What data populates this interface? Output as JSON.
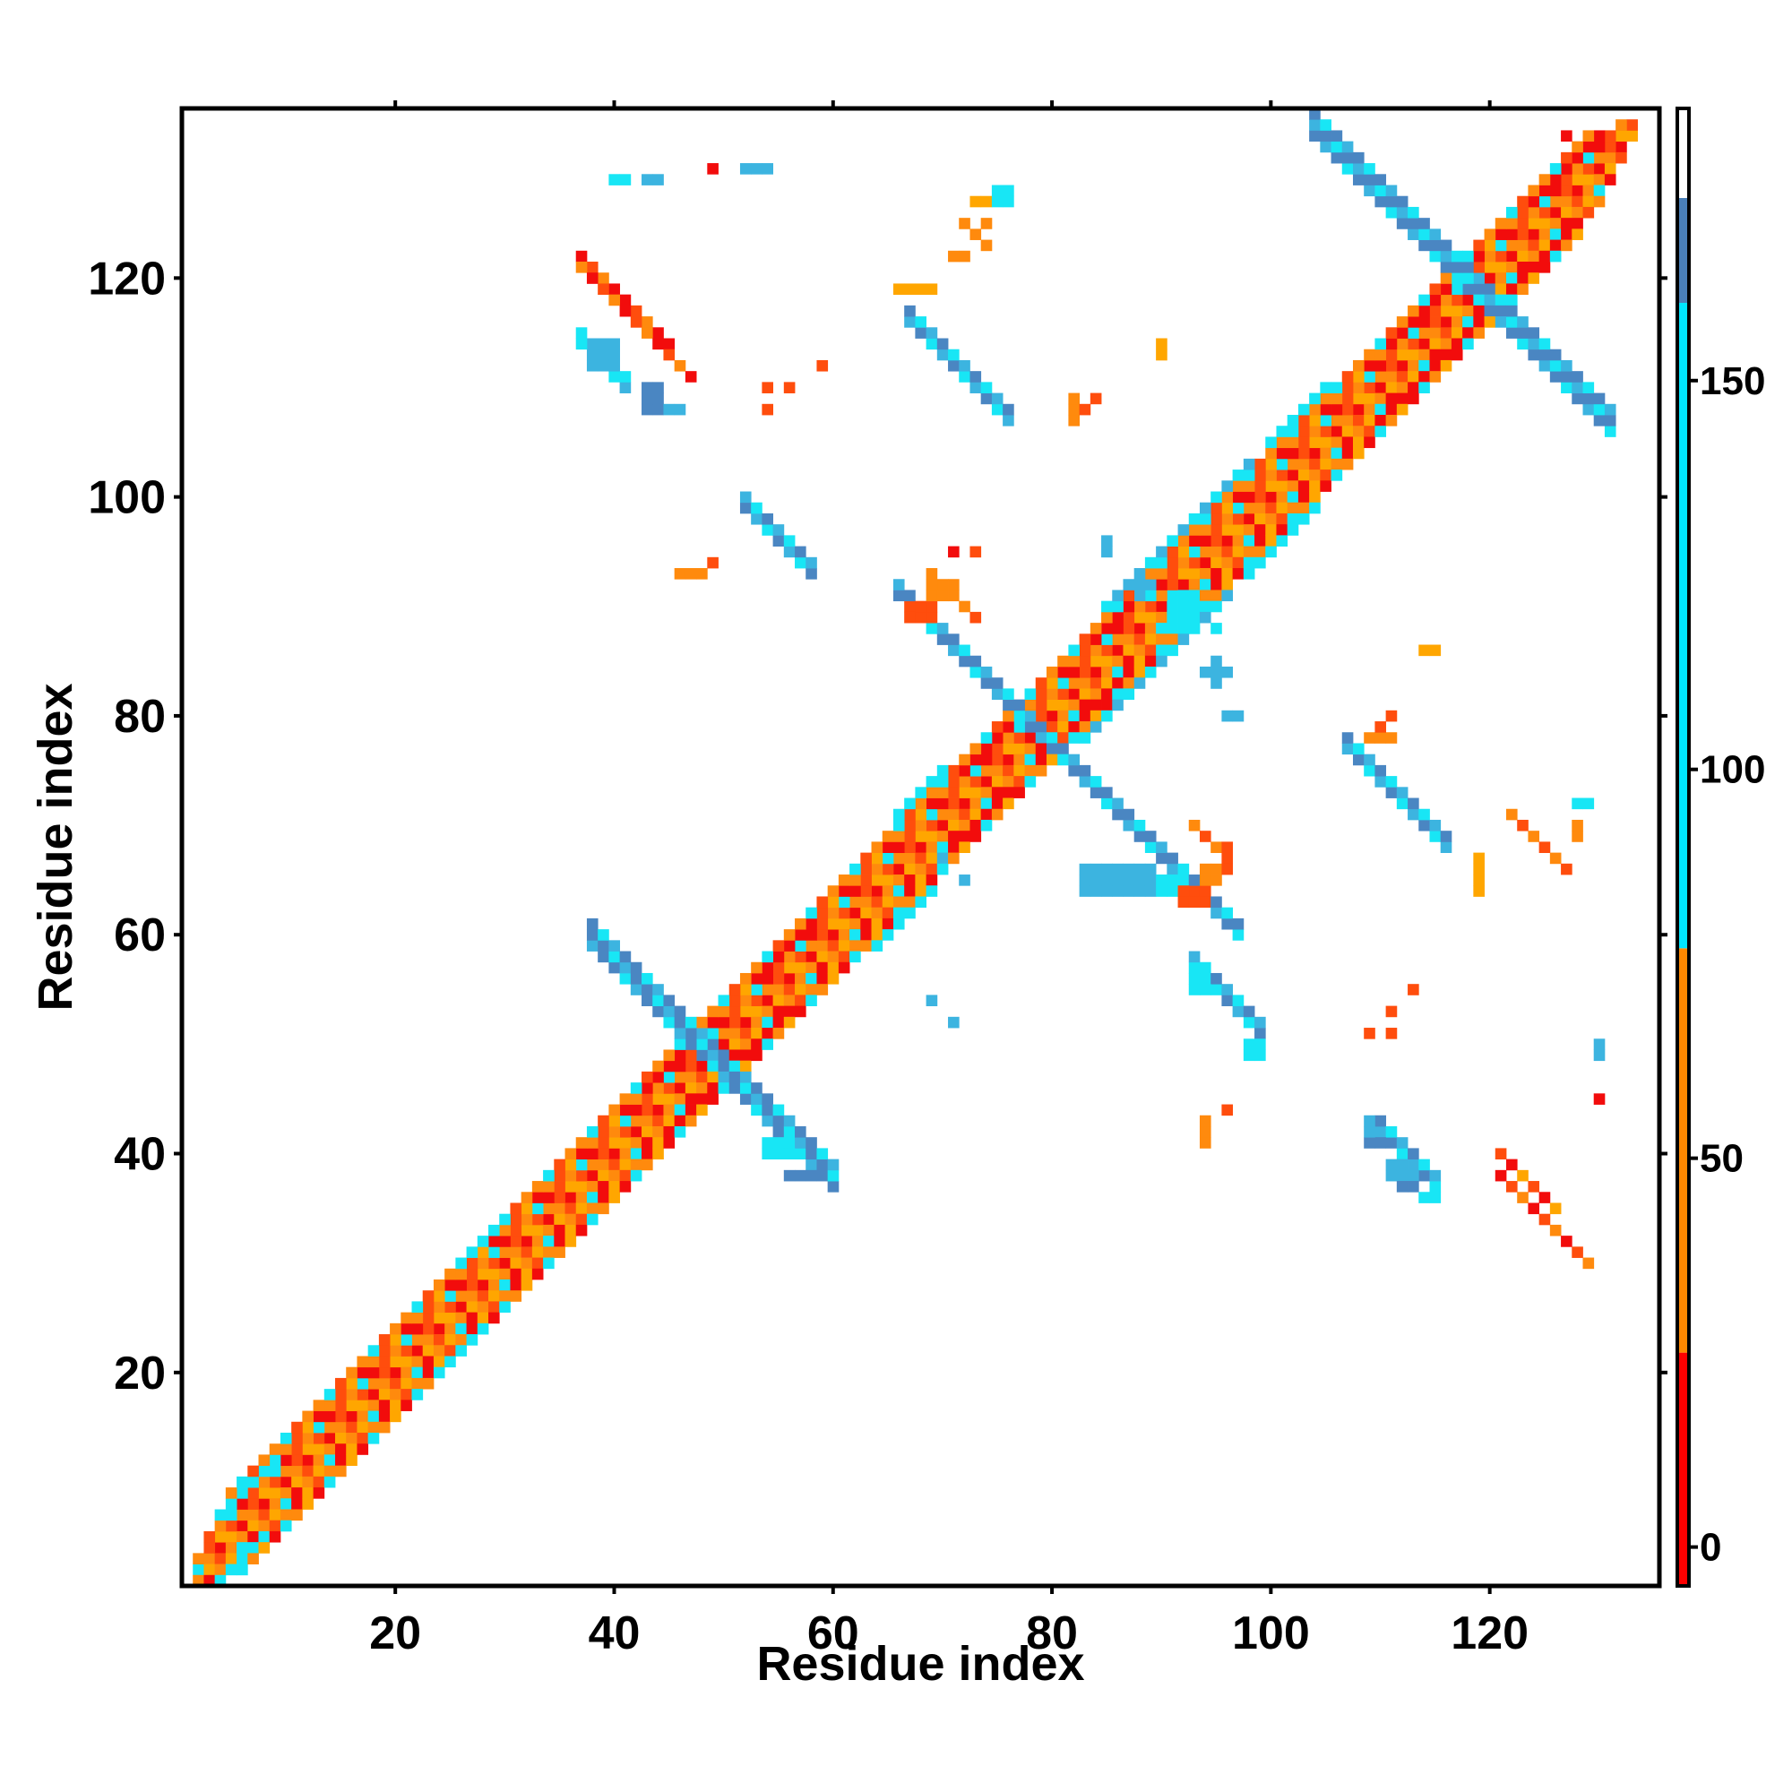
{
  "chart_data": {
    "type": "heatmap",
    "title": "",
    "xlabel": "Residue index",
    "ylabel": "Residue index",
    "xlim": [
      1,
      135
    ],
    "ylim": [
      1,
      135
    ],
    "xticks": [
      20,
      40,
      60,
      80,
      100,
      120
    ],
    "yticks": [
      20,
      40,
      60,
      80,
      100,
      120
    ],
    "colorbar": {
      "ticks": [
        0,
        50,
        100,
        150
      ],
      "range": [
        -5,
        185
      ],
      "segments": [
        {
          "from": -5,
          "to": 25,
          "color": "#ff0000"
        },
        {
          "from": 25,
          "to": 77,
          "color": "#ff8800"
        },
        {
          "from": 77,
          "to": 160,
          "color": "#00e5ff"
        },
        {
          "from": 160,
          "to": 185,
          "color": "#4a7fb8"
        }
      ]
    },
    "colors": {
      "red": "#f20c0c",
      "redorange": "#ff4d0d",
      "orange": "#ff8a0d",
      "amber": "#ffa600",
      "cyan": "#18e6f5",
      "lightblue": "#3cb4e0",
      "steelblue": "#4a86c2"
    },
    "cells": [
      {
        "x": 2,
        "y": 2,
        "c": "cyan"
      },
      {
        "x": 3,
        "y": 3,
        "c": "orange"
      },
      {
        "x": 127,
        "y": 133,
        "c": "red"
      },
      {
        "x": 117,
        "y": 120,
        "c": "cyan"
      }
    ],
    "strips": [
      {
        "x0": 2,
        "x1": 133,
        "dy": 0,
        "c": [
          "red",
          "orange",
          "red",
          "amber"
        ]
      },
      {
        "x0": 2,
        "x1": 133,
        "dy": 1,
        "c": [
          "orange",
          "redorange",
          "amber",
          "redorange"
        ]
      },
      {
        "x0": 2,
        "x1": 132,
        "dy": -1,
        "c": [
          "orange",
          "amber",
          "redorange",
          "orange"
        ]
      },
      {
        "x0": 3,
        "x1": 132,
        "dy": 2,
        "c": [
          "redorange",
          "orange",
          "cyan",
          "red"
        ]
      },
      {
        "x0": 3,
        "x1": 131,
        "dy": -2,
        "c": [
          "red",
          "orange",
          "amber",
          "cyan"
        ]
      },
      {
        "x0": 4,
        "x1": 130,
        "dy": 3,
        "c": [
          "amber",
          "red",
          "orange",
          "redorange"
        ]
      },
      {
        "x0": 5,
        "x1": 130,
        "dy": -3,
        "c": [
          "redorange",
          "orange",
          "red",
          "amber"
        ]
      },
      {
        "x0": 5,
        "x1": 129,
        "dy": 4,
        "c": [
          "orange",
          "cyan",
          "redorange",
          "orange"
        ]
      },
      {
        "x0": 6,
        "x1": 128,
        "dy": -4,
        "c": [
          "cyan",
          "orange",
          "amber",
          "red"
        ]
      },
      {
        "x0": 2,
        "x1": 8,
        "dy": -3,
        "c": [
          "cyan"
        ]
      },
      {
        "x0": 4,
        "x1": 9,
        "dy": 3,
        "c": [
          "cyan"
        ]
      },
      {
        "x0": 24,
        "x1": 28,
        "dy": -4,
        "c": [
          "cyan"
        ]
      },
      {
        "x0": 26,
        "x1": 29,
        "dy": 4,
        "c": [
          "cyan"
        ]
      },
      {
        "x0": 64,
        "x1": 69,
        "dy": -5,
        "c": [
          "cyan"
        ]
      },
      {
        "x0": 66,
        "x1": 70,
        "dy": 5,
        "c": [
          "cyan"
        ]
      },
      {
        "x0": 83,
        "x1": 96,
        "dy": -5,
        "c": [
          "cyan",
          "lightblue"
        ]
      },
      {
        "x0": 85,
        "x1": 98,
        "dy": 5,
        "c": [
          "cyan",
          "lightblue"
        ]
      },
      {
        "x0": 98,
        "x1": 104,
        "dy": -5,
        "c": [
          "cyan"
        ]
      },
      {
        "x0": 100,
        "x1": 105,
        "dy": 5,
        "c": [
          "cyan"
        ]
      },
      {
        "x0": 43,
        "x1": 47,
        "dy": 3,
        "c": [
          "red"
        ]
      },
      {
        "x0": 45,
        "x1": 49,
        "dy": -3,
        "c": [
          "red"
        ]
      },
      {
        "x0": 52,
        "x1": 56,
        "dy": -3,
        "c": [
          "red"
        ]
      },
      {
        "x0": 54,
        "x1": 58,
        "dy": 3,
        "c": [
          "red"
        ]
      },
      {
        "x0": 70,
        "x1": 76,
        "dy": -3,
        "c": [
          "red"
        ]
      },
      {
        "x0": 72,
        "x1": 77,
        "dy": 3,
        "c": [
          "red"
        ]
      },
      {
        "x0": 82,
        "x1": 86,
        "dy": -3,
        "c": [
          "red"
        ]
      },
      {
        "x0": 84,
        "x1": 88,
        "dy": 3,
        "c": [
          "red"
        ]
      },
      {
        "x0": 110,
        "x1": 118,
        "dy": -3,
        "c": [
          "red"
        ]
      },
      {
        "x0": 111,
        "x1": 119,
        "dy": 3,
        "c": [
          "red"
        ]
      },
      {
        "x0": 122,
        "x1": 128,
        "dy": -3,
        "c": [
          "red"
        ]
      },
      {
        "x0": 124,
        "x1": 130,
        "dy": 3,
        "c": [
          "red"
        ]
      }
    ],
    "anti": [
      {
        "x0": 38,
        "x1": 60,
        "s": 97,
        "w": 3,
        "c": [
          "lightblue",
          "steelblue",
          "steelblue",
          "cyan"
        ]
      },
      {
        "x0": 66,
        "x1": 97,
        "s": 157,
        "w": 2,
        "c": [
          "steelblue",
          "lightblue",
          "steelblue",
          "cyan"
        ]
      },
      {
        "x0": 104,
        "x1": 131,
        "s": 237,
        "w": 3,
        "c": [
          "steelblue",
          "lightblue",
          "steelblue",
          "cyan"
        ]
      },
      {
        "x0": 52,
        "x1": 58,
        "s": 151,
        "w": 2,
        "c": [
          "steelblue",
          "lightblue",
          "cyan"
        ]
      },
      {
        "x0": 67,
        "x1": 76,
        "s": 183,
        "w": 2,
        "c": [
          "lightblue",
          "steelblue",
          "cyan"
        ]
      },
      {
        "x0": 93,
        "x1": 99,
        "s": 150,
        "w": 2,
        "c": [
          "steelblue",
          "lightblue",
          "cyan"
        ]
      },
      {
        "x0": 107,
        "x1": 116,
        "s": 184,
        "w": 2,
        "c": [
          "lightblue",
          "steelblue",
          "cyan"
        ]
      },
      {
        "x0": 110,
        "x1": 115,
        "s": 152,
        "w": 2,
        "c": [
          "lightblue",
          "steelblue",
          "cyan"
        ]
      },
      {
        "x0": 38,
        "x1": 41,
        "s": 151,
        "w": 2,
        "c": [
          "cyan",
          "lightblue"
        ]
      },
      {
        "x0": 37,
        "x1": 45,
        "s": 159,
        "w": 1,
        "c": [
          "red",
          "redorange",
          "orange",
          "red"
        ]
      },
      {
        "x0": 37,
        "x1": 47,
        "s": 158,
        "w": 1,
        "c": [
          "orange",
          "red",
          "redorange"
        ]
      },
      {
        "x0": 121,
        "x1": 129,
        "s": 159,
        "w": 1,
        "c": [
          "red",
          "redorange",
          "orange"
        ]
      },
      {
        "x0": 121,
        "x1": 126,
        "s": 161,
        "w": 1,
        "c": [
          "redorange",
          "red",
          "amber"
        ]
      },
      {
        "x0": 69,
        "x1": 73,
        "s": 162,
        "w": 1,
        "c": [
          "orange",
          "redorange",
          "red"
        ]
      },
      {
        "x0": 93,
        "x1": 96,
        "s": 163,
        "w": 1,
        "c": [
          "orange",
          "redorange"
        ]
      },
      {
        "x0": 122,
        "x1": 127,
        "s": 193,
        "w": 1,
        "c": [
          "orange",
          "redorange"
        ]
      },
      {
        "x0": 72,
        "x1": 74,
        "s": 197,
        "w": 1,
        "c": [
          "orange"
        ]
      }
    ],
    "rects": [
      {
        "x": 40,
        "y": 129,
        "w": 2,
        "h": 1,
        "c": "cyan"
      },
      {
        "x": 43,
        "y": 129,
        "w": 2,
        "h": 1,
        "c": "lightblue"
      },
      {
        "x": 49,
        "y": 130,
        "w": 1,
        "h": 1,
        "c": "red"
      },
      {
        "x": 52,
        "y": 130,
        "w": 3,
        "h": 1,
        "c": "lightblue"
      },
      {
        "x": 38,
        "y": 112,
        "w": 3,
        "h": 3,
        "c": "lightblue"
      },
      {
        "x": 37,
        "y": 114,
        "w": 1,
        "h": 2,
        "c": "cyan"
      },
      {
        "x": 43,
        "y": 108,
        "w": 2,
        "h": 3,
        "c": "steelblue"
      },
      {
        "x": 45,
        "y": 108,
        "w": 2,
        "h": 1,
        "c": "lightblue"
      },
      {
        "x": 54,
        "y": 108,
        "w": 1,
        "h": 1,
        "c": "redorange"
      },
      {
        "x": 54,
        "y": 110,
        "w": 1,
        "h": 1,
        "c": "redorange"
      },
      {
        "x": 56,
        "y": 110,
        "w": 1,
        "h": 1,
        "c": "redorange"
      },
      {
        "x": 59,
        "y": 112,
        "w": 1,
        "h": 1,
        "c": "redorange"
      },
      {
        "x": 66,
        "y": 119,
        "w": 4,
        "h": 1,
        "c": "amber"
      },
      {
        "x": 71,
        "y": 122,
        "w": 2,
        "h": 1,
        "c": "orange"
      },
      {
        "x": 73,
        "y": 124,
        "w": 1,
        "h": 1,
        "c": "orange"
      },
      {
        "x": 74,
        "y": 125,
        "w": 1,
        "h": 1,
        "c": "orange"
      },
      {
        "x": 73,
        "y": 127,
        "w": 2,
        "h": 1,
        "c": "amber"
      },
      {
        "x": 75,
        "y": 127,
        "w": 2,
        "h": 2,
        "c": "cyan"
      },
      {
        "x": 82,
        "y": 107,
        "w": 1,
        "h": 3,
        "c": "orange"
      },
      {
        "x": 83,
        "y": 108,
        "w": 1,
        "h": 1,
        "c": "redorange"
      },
      {
        "x": 84,
        "y": 109,
        "w": 1,
        "h": 1,
        "c": "redorange"
      },
      {
        "x": 90,
        "y": 113,
        "w": 1,
        "h": 2,
        "c": "amber"
      },
      {
        "x": 46,
        "y": 93,
        "w": 3,
        "h": 1,
        "c": "orange"
      },
      {
        "x": 49,
        "y": 94,
        "w": 1,
        "h": 1,
        "c": "redorange"
      },
      {
        "x": 67,
        "y": 89,
        "w": 3,
        "h": 2,
        "c": "redorange"
      },
      {
        "x": 69,
        "y": 91,
        "w": 3,
        "h": 2,
        "c": "orange"
      },
      {
        "x": 71,
        "y": 95,
        "w": 1,
        "h": 1,
        "c": "red"
      },
      {
        "x": 73,
        "y": 95,
        "w": 1,
        "h": 1,
        "c": "redorange"
      },
      {
        "x": 85,
        "y": 95,
        "w": 1,
        "h": 2,
        "c": "lightblue"
      },
      {
        "x": 87,
        "y": 92,
        "w": 3,
        "h": 1,
        "c": "lightblue"
      },
      {
        "x": 88,
        "y": 91,
        "w": 1,
        "h": 3,
        "c": "lightblue"
      },
      {
        "x": 91,
        "y": 88,
        "w": 3,
        "h": 4,
        "c": "cyan"
      },
      {
        "x": 95,
        "y": 88,
        "w": 1,
        "h": 1,
        "c": "cyan"
      },
      {
        "x": 94,
        "y": 84,
        "w": 3,
        "h": 1,
        "c": "lightblue"
      },
      {
        "x": 95,
        "y": 83,
        "w": 1,
        "h": 3,
        "c": "lightblue"
      },
      {
        "x": 96,
        "y": 80,
        "w": 2,
        "h": 1,
        "c": "lightblue"
      },
      {
        "x": 114,
        "y": 86,
        "w": 2,
        "h": 1,
        "c": "amber"
      },
      {
        "x": 109,
        "y": 78,
        "w": 3,
        "h": 1,
        "c": "orange"
      },
      {
        "x": 110,
        "y": 79,
        "w": 1,
        "h": 1,
        "c": "redorange"
      },
      {
        "x": 111,
        "y": 80,
        "w": 1,
        "h": 1,
        "c": "redorange"
      },
      {
        "x": 70,
        "y": 67,
        "w": 1,
        "h": 1,
        "c": "lightblue"
      },
      {
        "x": 72,
        "y": 65,
        "w": 1,
        "h": 1,
        "c": "lightblue"
      },
      {
        "x": 83,
        "y": 64,
        "w": 7,
        "h": 3,
        "c": "lightblue"
      },
      {
        "x": 90,
        "y": 64,
        "w": 3,
        "h": 2,
        "c": "cyan"
      },
      {
        "x": 92,
        "y": 63,
        "w": 3,
        "h": 2,
        "c": "redorange"
      },
      {
        "x": 94,
        "y": 65,
        "w": 2,
        "h": 2,
        "c": "orange"
      },
      {
        "x": 96,
        "y": 66,
        "w": 1,
        "h": 1,
        "c": "redorange"
      },
      {
        "x": 96,
        "y": 68,
        "w": 1,
        "h": 1,
        "c": "redorange"
      },
      {
        "x": 119,
        "y": 64,
        "w": 1,
        "h": 4,
        "c": "amber"
      },
      {
        "x": 128,
        "y": 69,
        "w": 1,
        "h": 2,
        "c": "orange"
      },
      {
        "x": 128,
        "y": 72,
        "w": 2,
        "h": 1,
        "c": "cyan"
      },
      {
        "x": 69,
        "y": 54,
        "w": 1,
        "h": 1,
        "c": "lightblue"
      },
      {
        "x": 71,
        "y": 52,
        "w": 1,
        "h": 1,
        "c": "lightblue"
      },
      {
        "x": 93,
        "y": 55,
        "w": 2,
        "h": 3,
        "c": "cyan"
      },
      {
        "x": 98,
        "y": 49,
        "w": 2,
        "h": 2,
        "c": "cyan"
      },
      {
        "x": 109,
        "y": 51,
        "w": 1,
        "h": 1,
        "c": "redorange"
      },
      {
        "x": 111,
        "y": 51,
        "w": 1,
        "h": 1,
        "c": "redorange"
      },
      {
        "x": 111,
        "y": 53,
        "w": 1,
        "h": 1,
        "c": "redorange"
      },
      {
        "x": 113,
        "y": 55,
        "w": 1,
        "h": 1,
        "c": "redorange"
      },
      {
        "x": 130,
        "y": 49,
        "w": 1,
        "h": 2,
        "c": "lightblue"
      },
      {
        "x": 130,
        "y": 45,
        "w": 1,
        "h": 1,
        "c": "red"
      },
      {
        "x": 54,
        "y": 40,
        "w": 3,
        "h": 2,
        "c": "cyan"
      },
      {
        "x": 56,
        "y": 38,
        "w": 3,
        "h": 1,
        "c": "steelblue"
      },
      {
        "x": 94,
        "y": 41,
        "w": 1,
        "h": 3,
        "c": "orange"
      },
      {
        "x": 96,
        "y": 44,
        "w": 1,
        "h": 1,
        "c": "redorange"
      },
      {
        "x": 109,
        "y": 41,
        "w": 3,
        "h": 1,
        "c": "steelblue"
      },
      {
        "x": 109,
        "y": 42,
        "w": 1,
        "h": 2,
        "c": "lightblue"
      },
      {
        "x": 111,
        "y": 38,
        "w": 3,
        "h": 2,
        "c": "lightblue"
      },
      {
        "x": 112,
        "y": 37,
        "w": 2,
        "h": 1,
        "c": "steelblue"
      },
      {
        "x": 114,
        "y": 36,
        "w": 2,
        "h": 1,
        "c": "cyan"
      }
    ]
  }
}
